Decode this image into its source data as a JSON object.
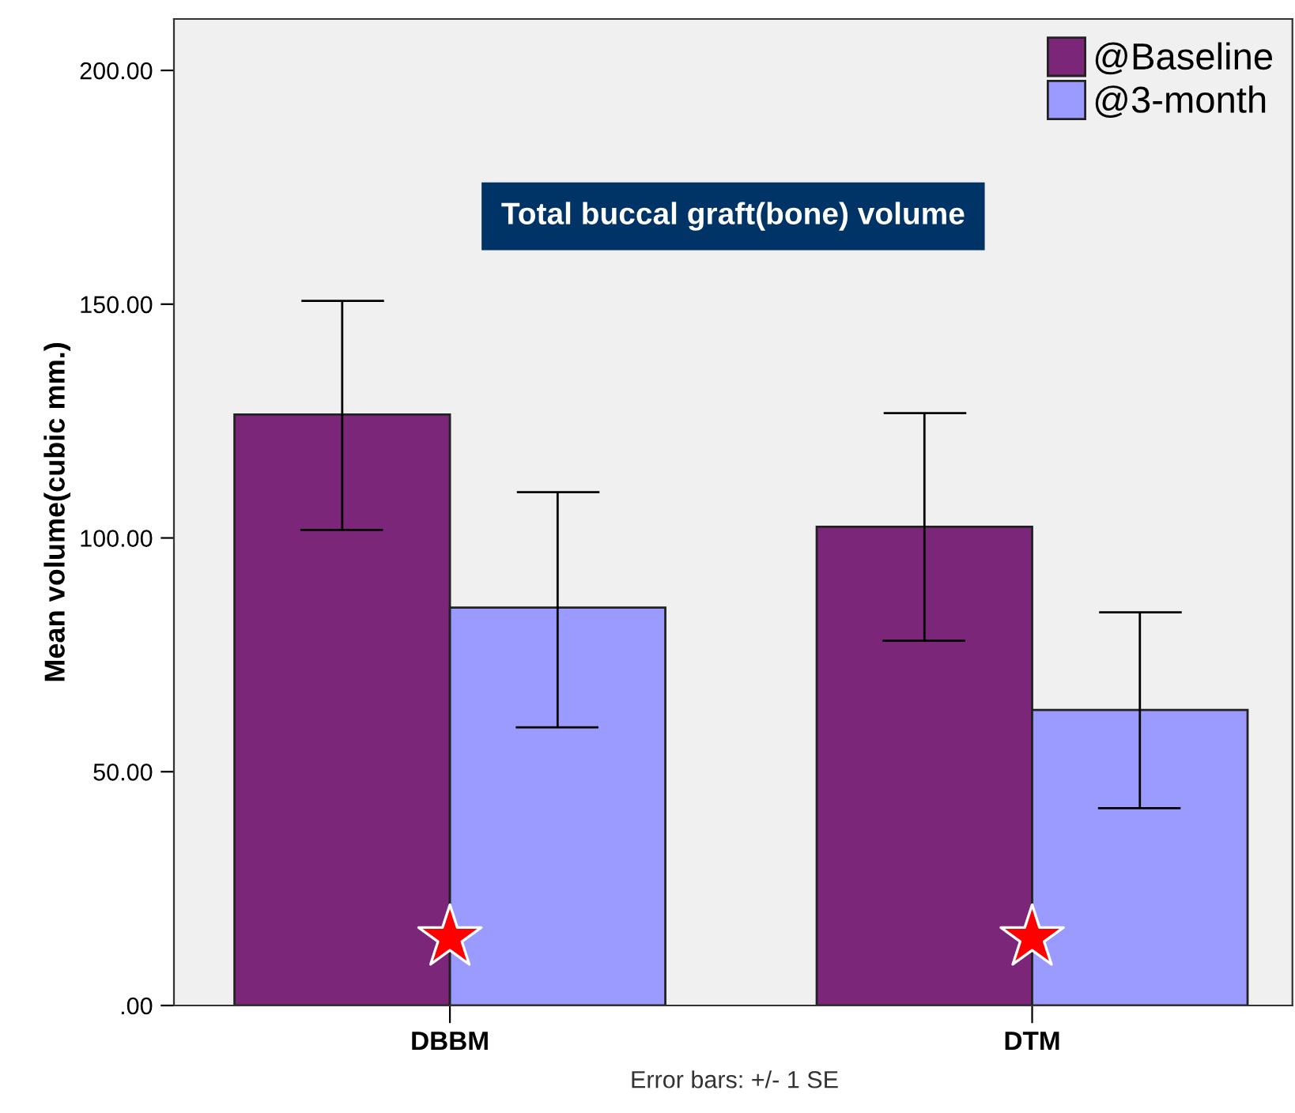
{
  "chart_data": {
    "type": "bar",
    "title": "Total buccal graft(bone) volume",
    "ylabel": "Mean volume(cubic mm.)",
    "categories": [
      "DBBM",
      "DTM"
    ],
    "series": [
      {
        "name": "@Baseline",
        "color": "#7b2679",
        "values": [
          126.4,
          102.4
        ],
        "errors": [
          [
            101.7,
            150.7
          ],
          [
            78.0,
            126.7
          ]
        ]
      },
      {
        "name": "@3-month",
        "color": "#9b9bff",
        "values": [
          85.1,
          63.2
        ],
        "errors": [
          [
            59.5,
            109.8
          ],
          [
            42.2,
            84.1
          ]
        ]
      }
    ],
    "ylim": [
      0,
      211
    ],
    "yticks": [
      {
        "value": 0,
        "label": ".00"
      },
      {
        "value": 50,
        "label": "50.00"
      },
      {
        "value": 100,
        "label": "100.00"
      },
      {
        "value": 150,
        "label": "150.00"
      },
      {
        "value": 200,
        "label": "200.00"
      }
    ],
    "annotations": [
      "Error bars: +/- 1 SE"
    ],
    "legend": "top right",
    "grid": false
  }
}
